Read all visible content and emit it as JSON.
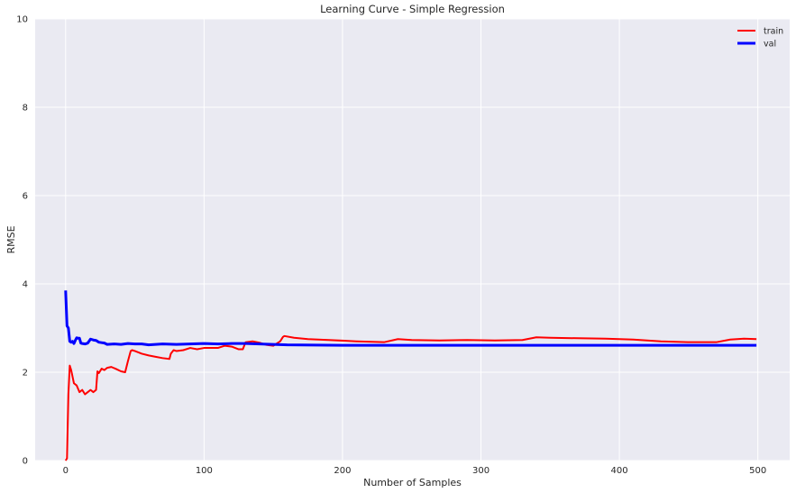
{
  "chart_data": {
    "type": "line",
    "title": "Learning Curve - Simple Regression",
    "xlabel": "Number of Samples",
    "ylabel": "RMSE",
    "xlim": [
      -22,
      523
    ],
    "ylim": [
      0,
      10
    ],
    "xticks": [
      0,
      100,
      200,
      300,
      400,
      500
    ],
    "yticks": [
      0,
      2,
      4,
      6,
      8,
      10
    ],
    "grid": true,
    "legend_position": "top-right",
    "series": [
      {
        "name": "train",
        "color": "#ff0000",
        "x": [
          0,
          1,
          2,
          3,
          4,
          6,
          8,
          10,
          12,
          14,
          16,
          18,
          20,
          22,
          23,
          24,
          26,
          28,
          30,
          33,
          36,
          40,
          43,
          45,
          47,
          48,
          50,
          55,
          60,
          65,
          70,
          75,
          76,
          78,
          80,
          85,
          90,
          95,
          100,
          110,
          115,
          120,
          125,
          128,
          130,
          135,
          140,
          145,
          150,
          155,
          157,
          158,
          165,
          175,
          190,
          210,
          230,
          240,
          250,
          270,
          290,
          310,
          330,
          340,
          350,
          370,
          390,
          410,
          430,
          450,
          470,
          480,
          490,
          499
        ],
        "y": [
          0.0,
          0.05,
          1.5,
          2.15,
          2.05,
          1.75,
          1.7,
          1.55,
          1.6,
          1.5,
          1.55,
          1.6,
          1.55,
          1.6,
          2.02,
          1.98,
          2.08,
          2.05,
          2.1,
          2.12,
          2.08,
          2.02,
          2.0,
          2.25,
          2.48,
          2.5,
          2.48,
          2.42,
          2.38,
          2.35,
          2.32,
          2.3,
          2.42,
          2.5,
          2.48,
          2.5,
          2.55,
          2.52,
          2.55,
          2.55,
          2.6,
          2.58,
          2.52,
          2.52,
          2.68,
          2.7,
          2.67,
          2.62,
          2.6,
          2.7,
          2.8,
          2.82,
          2.78,
          2.75,
          2.73,
          2.7,
          2.68,
          2.75,
          2.73,
          2.72,
          2.73,
          2.72,
          2.73,
          2.79,
          2.78,
          2.77,
          2.76,
          2.74,
          2.7,
          2.68,
          2.68,
          2.74,
          2.76,
          2.75
        ]
      },
      {
        "name": "val",
        "color": "#0000ff",
        "x": [
          0,
          1,
          2,
          3,
          4,
          5,
          6,
          7,
          8,
          9,
          10,
          11,
          12,
          14,
          16,
          18,
          20,
          22,
          24,
          26,
          28,
          30,
          35,
          40,
          45,
          50,
          55,
          60,
          65,
          70,
          80,
          90,
          100,
          110,
          120,
          130,
          140,
          150,
          160,
          200,
          250,
          300,
          350,
          400,
          450,
          499
        ],
        "y": [
          3.85,
          3.05,
          3.0,
          2.7,
          2.68,
          2.7,
          2.65,
          2.72,
          2.78,
          2.77,
          2.77,
          2.66,
          2.65,
          2.64,
          2.66,
          2.75,
          2.73,
          2.72,
          2.68,
          2.67,
          2.66,
          2.63,
          2.64,
          2.63,
          2.65,
          2.64,
          2.64,
          2.62,
          2.63,
          2.64,
          2.63,
          2.64,
          2.65,
          2.64,
          2.65,
          2.65,
          2.64,
          2.63,
          2.62,
          2.61,
          2.61,
          2.61,
          2.61,
          2.61,
          2.61,
          2.61
        ]
      }
    ]
  }
}
